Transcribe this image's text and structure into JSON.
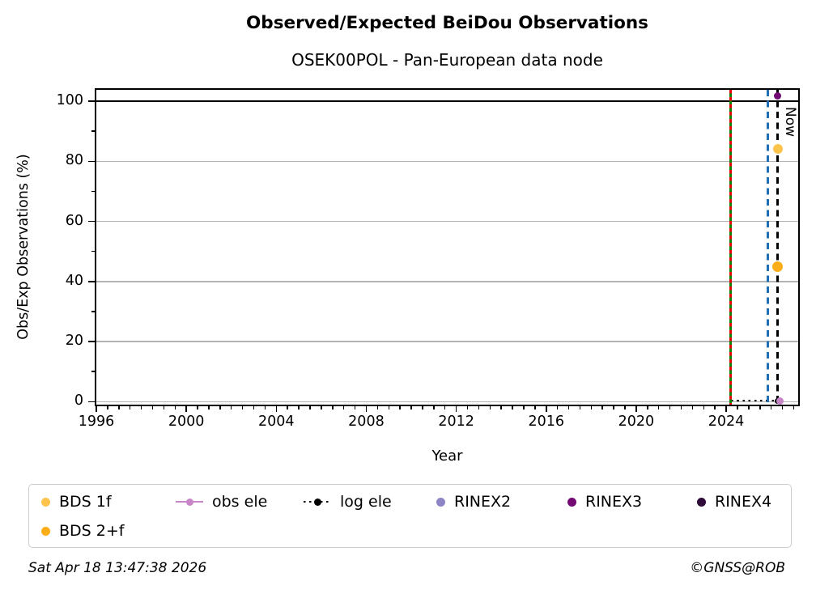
{
  "header": {
    "title": "Observed/Expected BeiDou Observations",
    "subtitle": "OSEK00POL - Pan-European data node"
  },
  "footer": {
    "timestamp": "Sat Apr 18 13:47:38 2026",
    "credit": "©GNSS@ROB"
  },
  "legend": {
    "items": [
      {
        "label": "BDS 1f",
        "marker": "dot",
        "color": "#fcc44d"
      },
      {
        "label": "obs ele",
        "marker": "line-dot",
        "color": "#c886c8"
      },
      {
        "label": "log ele",
        "marker": "dotted-line-dot",
        "color": "#000000"
      },
      {
        "label": "RINEX2",
        "marker": "dot",
        "color": "#8d85c5"
      },
      {
        "label": "RINEX3",
        "marker": "dot",
        "color": "#730973"
      },
      {
        "label": "RINEX4",
        "marker": "dot",
        "color": "#2f0c3a"
      },
      {
        "label": "BDS 2+f",
        "marker": "dot",
        "color": "#fbae17"
      }
    ]
  },
  "chart_data": {
    "type": "scatter",
    "title": "Observed/Expected BeiDou Observations",
    "subtitle": "OSEK00POL - Pan-European data node",
    "xlabel": "Year",
    "ylabel": "Obs/Exp Observations (%)",
    "xlim": [
      1996,
      2027.2
    ],
    "ylim": [
      -1,
      103.8
    ],
    "x_major_ticks": [
      1996,
      2000,
      2004,
      2008,
      2012,
      2016,
      2020,
      2024
    ],
    "x_tick_labels": [
      "1996",
      "2000",
      "2004",
      "2008",
      "2012",
      "2016",
      "2020",
      "2024"
    ],
    "x_minor_step": 0.5,
    "y_major_ticks": [
      0,
      20,
      40,
      60,
      80,
      100
    ],
    "y_tick_labels": [
      "0",
      "20",
      "40",
      "60",
      "80",
      "100"
    ],
    "y_minor_step": 10,
    "grid": "horizontal-only",
    "gridline_color": "#b3b3b3",
    "gridlines_y": [
      0,
      20,
      40,
      60,
      80
    ],
    "reference_line_y": 100,
    "vertical_lines": [
      {
        "name": "data-start-line",
        "x": 2024.2,
        "color": "#078507",
        "style": "solid",
        "overlay_color": "#e8000b",
        "overlay_style": "dashed"
      },
      {
        "name": "latest-file-line",
        "x": 2025.85,
        "color": "#1e6fb5",
        "style": "dashed"
      },
      {
        "name": "now-line",
        "x": 2026.3,
        "color": "#000000",
        "style": "dashed",
        "label": "Now"
      }
    ],
    "log_ele_segment": {
      "x0": 2024.2,
      "x1": 2026.2,
      "y": 0.3,
      "color": "#000000",
      "style": "dotted"
    },
    "points": [
      {
        "series": "RINEX3",
        "x": 2026.3,
        "y": 101.8,
        "color": "#730973",
        "size": 9
      },
      {
        "series": "BDS 1f",
        "x": 2026.3,
        "y": 84,
        "color": "#fcc44d",
        "size": 12
      },
      {
        "series": "BDS 2+f",
        "x": 2026.3,
        "y": 45,
        "color": "#fbae17",
        "size": 13
      },
      {
        "series": "log ele",
        "x": 2026.28,
        "y": 0.3,
        "color": "#000000",
        "size": 7
      },
      {
        "series": "obs ele",
        "x": 2026.38,
        "y": 0.3,
        "color": "#c886c8",
        "size": 9
      }
    ],
    "legend_position": "below"
  }
}
